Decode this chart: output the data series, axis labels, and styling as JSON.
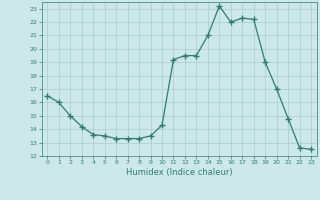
{
  "x": [
    0,
    1,
    2,
    3,
    4,
    5,
    6,
    7,
    8,
    9,
    10,
    11,
    12,
    13,
    14,
    15,
    16,
    17,
    18,
    19,
    20,
    21,
    22,
    23
  ],
  "y": [
    16.5,
    16.0,
    15.0,
    14.2,
    13.6,
    13.5,
    13.3,
    13.3,
    13.3,
    13.5,
    14.3,
    19.2,
    19.5,
    19.5,
    21.0,
    23.2,
    22.0,
    22.3,
    22.2,
    19.0,
    17.0,
    14.8,
    12.6,
    12.5
  ],
  "line_color": "#2e7d6e",
  "marker": "+",
  "marker_size": 4,
  "bg_color": "#cce8e8",
  "grid_color": "#aacccc",
  "xlabel": "Humidex (Indice chaleur)",
  "xlim": [
    -0.5,
    23.5
  ],
  "ylim": [
    12,
    23.5
  ],
  "yticks": [
    12,
    13,
    14,
    15,
    16,
    17,
    18,
    19,
    20,
    21,
    22,
    23
  ],
  "xticks": [
    0,
    1,
    2,
    3,
    4,
    5,
    6,
    7,
    8,
    9,
    10,
    11,
    12,
    13,
    14,
    15,
    16,
    17,
    18,
    19,
    20,
    21,
    22,
    23
  ]
}
